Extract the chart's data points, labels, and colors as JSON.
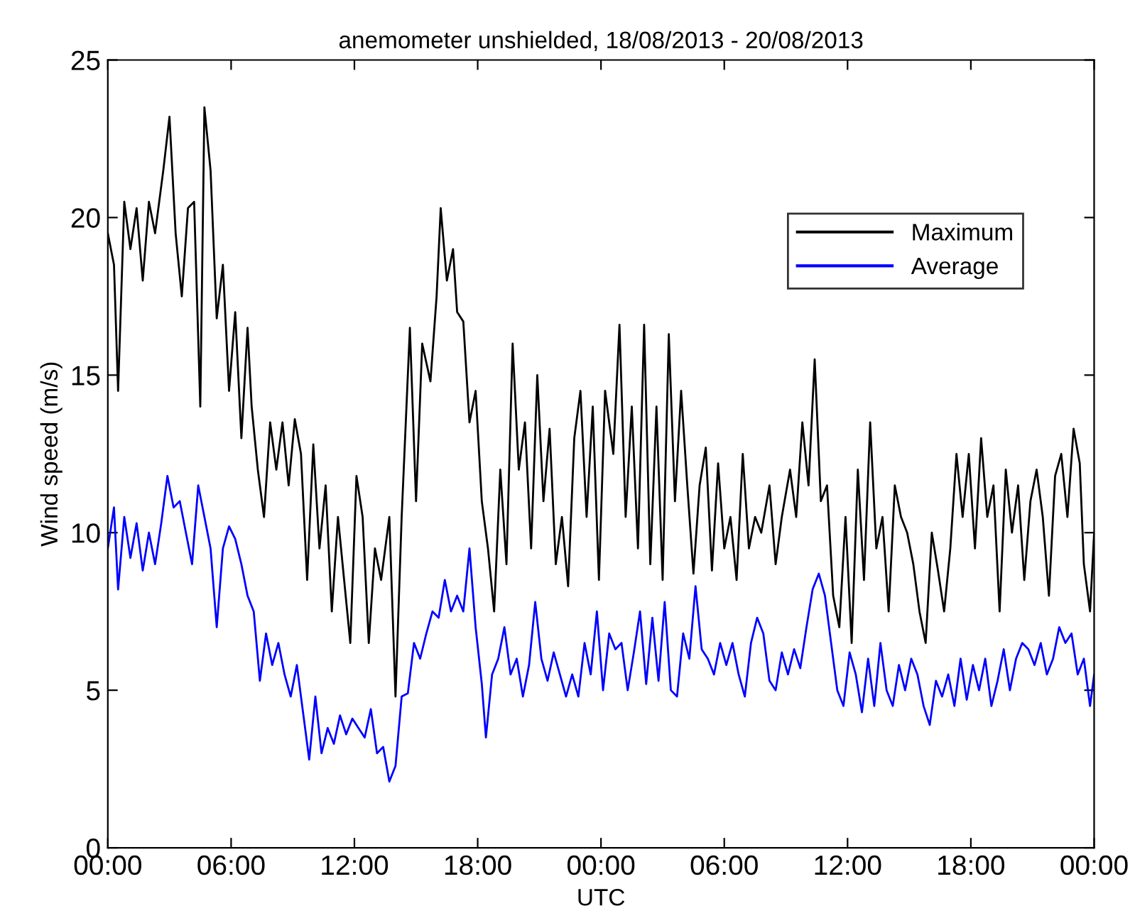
{
  "chart_data": {
    "type": "line",
    "title": "anemometer unshielded, 18/08/2013 - 20/08/2013",
    "xlabel": "UTC",
    "ylabel": "Wind speed (m/s)",
    "xlim": [
      "2013-08-18T00:00",
      "2013-08-20T00:00"
    ],
    "xticks": [
      {
        "value": "2013-08-18T00:00",
        "label": "00:00"
      },
      {
        "value": "2013-08-18T06:00",
        "label": "06:00"
      },
      {
        "value": "2013-08-18T12:00",
        "label": "12:00"
      },
      {
        "value": "2013-08-18T18:00",
        "label": "18:00"
      },
      {
        "value": "2013-08-19T00:00",
        "label": "00:00"
      },
      {
        "value": "2013-08-19T06:00",
        "label": "06:00"
      },
      {
        "value": "2013-08-19T12:00",
        "label": "12:00"
      },
      {
        "value": "2013-08-19T18:00",
        "label": "18:00"
      },
      {
        "value": "2013-08-20T00:00",
        "label": "00:00"
      }
    ],
    "ylim": [
      0,
      25
    ],
    "yticks": [
      0,
      5,
      10,
      15,
      20,
      25
    ],
    "grid": false,
    "legend": "top right",
    "line_style": "solid",
    "marker": "none",
    "series": [
      {
        "name": "Maximum",
        "color": "#000000",
        "x": [
          "2013-08-18T00:00",
          "2013-08-18T00:18",
          "2013-08-18T00:30",
          "2013-08-18T00:48",
          "2013-08-18T01:06",
          "2013-08-18T01:24",
          "2013-08-18T01:42",
          "2013-08-18T02:00",
          "2013-08-18T02:18",
          "2013-08-18T02:42",
          "2013-08-18T03:00",
          "2013-08-18T03:18",
          "2013-08-18T03:36",
          "2013-08-18T03:54",
          "2013-08-18T04:12",
          "2013-08-18T04:30",
          "2013-08-18T04:42",
          "2013-08-18T05:00",
          "2013-08-18T05:18",
          "2013-08-18T05:36",
          "2013-08-18T05:54",
          "2013-08-18T06:12",
          "2013-08-18T06:30",
          "2013-08-18T06:48",
          "2013-08-18T07:00",
          "2013-08-18T07:18",
          "2013-08-18T07:36",
          "2013-08-18T07:54",
          "2013-08-18T08:12",
          "2013-08-18T08:30",
          "2013-08-18T08:48",
          "2013-08-18T09:06",
          "2013-08-18T09:24",
          "2013-08-18T09:42",
          "2013-08-18T10:00",
          "2013-08-18T10:18",
          "2013-08-18T10:36",
          "2013-08-18T10:54",
          "2013-08-18T11:12",
          "2013-08-18T11:30",
          "2013-08-18T11:48",
          "2013-08-18T12:06",
          "2013-08-18T12:24",
          "2013-08-18T12:42",
          "2013-08-18T13:00",
          "2013-08-18T13:18",
          "2013-08-18T13:42",
          "2013-08-18T14:00",
          "2013-08-18T14:18",
          "2013-08-18T14:42",
          "2013-08-18T15:00",
          "2013-08-18T15:18",
          "2013-08-18T15:42",
          "2013-08-18T16:00",
          "2013-08-18T16:12",
          "2013-08-18T16:30",
          "2013-08-18T16:48",
          "2013-08-18T17:00",
          "2013-08-18T17:18",
          "2013-08-18T17:36",
          "2013-08-18T17:54",
          "2013-08-18T18:12",
          "2013-08-18T18:30",
          "2013-08-18T18:48",
          "2013-08-18T19:06",
          "2013-08-18T19:24",
          "2013-08-18T19:42",
          "2013-08-18T20:00",
          "2013-08-18T20:18",
          "2013-08-18T20:36",
          "2013-08-18T20:54",
          "2013-08-18T21:12",
          "2013-08-18T21:30",
          "2013-08-18T21:48",
          "2013-08-18T22:06",
          "2013-08-18T22:24",
          "2013-08-18T22:42",
          "2013-08-18T23:00",
          "2013-08-18T23:18",
          "2013-08-18T23:36",
          "2013-08-18T23:54",
          "2013-08-19T00:12",
          "2013-08-19T00:36",
          "2013-08-19T00:54",
          "2013-08-19T01:12",
          "2013-08-19T01:30",
          "2013-08-19T01:48",
          "2013-08-19T02:06",
          "2013-08-19T02:24",
          "2013-08-19T02:42",
          "2013-08-19T03:00",
          "2013-08-19T03:18",
          "2013-08-19T03:36",
          "2013-08-19T03:54",
          "2013-08-19T04:12",
          "2013-08-19T04:30",
          "2013-08-19T04:48",
          "2013-08-19T05:06",
          "2013-08-19T05:24",
          "2013-08-19T05:42",
          "2013-08-19T06:00",
          "2013-08-19T06:18",
          "2013-08-19T06:36",
          "2013-08-19T06:54",
          "2013-08-19T07:12",
          "2013-08-19T07:30",
          "2013-08-19T07:48",
          "2013-08-19T08:12",
          "2013-08-19T08:30",
          "2013-08-19T08:48",
          "2013-08-19T09:12",
          "2013-08-19T09:30",
          "2013-08-19T09:48",
          "2013-08-19T10:06",
          "2013-08-19T10:24",
          "2013-08-19T10:42",
          "2013-08-19T11:00",
          "2013-08-19T11:18",
          "2013-08-19T11:36",
          "2013-08-19T11:54",
          "2013-08-19T12:12",
          "2013-08-19T12:30",
          "2013-08-19T12:48",
          "2013-08-19T13:06",
          "2013-08-19T13:24",
          "2013-08-19T13:42",
          "2013-08-19T14:00",
          "2013-08-19T14:18",
          "2013-08-19T14:36",
          "2013-08-19T14:54",
          "2013-08-19T15:12",
          "2013-08-19T15:30",
          "2013-08-19T15:48",
          "2013-08-19T16:06",
          "2013-08-19T16:24",
          "2013-08-19T16:42",
          "2013-08-19T17:00",
          "2013-08-19T17:18",
          "2013-08-19T17:36",
          "2013-08-19T17:54",
          "2013-08-19T18:12",
          "2013-08-19T18:30",
          "2013-08-19T18:48",
          "2013-08-19T19:06",
          "2013-08-19T19:24",
          "2013-08-19T19:42",
          "2013-08-19T20:00",
          "2013-08-19T20:18",
          "2013-08-19T20:36",
          "2013-08-19T20:54",
          "2013-08-19T21:12",
          "2013-08-19T21:30",
          "2013-08-19T21:48",
          "2013-08-19T22:06",
          "2013-08-19T22:24",
          "2013-08-19T22:42",
          "2013-08-19T23:00",
          "2013-08-19T23:18",
          "2013-08-19T23:30",
          "2013-08-19T23:48",
          "2013-08-20T00:00"
        ],
        "values": [
          19.5,
          18.5,
          14.5,
          20.5,
          19,
          20.3,
          18,
          20.5,
          19.5,
          21.5,
          23.2,
          19.5,
          17.5,
          20.3,
          20.5,
          14,
          23.5,
          21.5,
          16.8,
          18.5,
          14.5,
          17,
          13,
          16.5,
          14,
          12,
          10.5,
          13.5,
          12,
          13.5,
          11.5,
          13.6,
          12.5,
          8.5,
          12.8,
          9.5,
          11.5,
          7.5,
          10.5,
          8.5,
          6.5,
          11.8,
          10.5,
          6.5,
          9.5,
          8.5,
          10.5,
          4.8,
          10.5,
          16.5,
          11,
          16,
          14.8,
          17.5,
          20.3,
          18,
          19,
          17,
          16.7,
          13.5,
          14.5,
          11,
          9.5,
          7.5,
          12,
          9,
          16,
          12,
          13.5,
          9.5,
          15,
          11,
          13.3,
          9,
          10.5,
          8.3,
          13,
          14.5,
          10.5,
          14,
          8.5,
          14.5,
          12.5,
          16.6,
          10.5,
          14,
          9.5,
          16.6,
          9,
          14,
          8.5,
          16.3,
          11,
          14.5,
          11.5,
          8.7,
          11.5,
          12.7,
          8.8,
          12.2,
          9.5,
          10.5,
          8.5,
          12.5,
          9.5,
          10.5,
          10,
          11.5,
          9,
          10.5,
          12,
          10.5,
          13.5,
          11.5,
          15.5,
          11,
          11.5,
          8,
          7,
          10.5,
          6.5,
          12,
          8.5,
          13.5,
          9.5,
          10.5,
          7.5,
          11.5,
          10.5,
          10,
          9,
          7.5,
          6.5,
          10,
          8.8,
          7.5,
          9.5,
          12.5,
          10.5,
          12.5,
          9.5,
          13,
          10.5,
          11.5,
          7.5,
          12,
          10,
          11.5,
          8.5,
          11,
          12,
          10.5,
          8,
          11.8,
          12.5,
          10.5,
          13.3,
          12.2,
          9,
          7.5,
          10
        ]
      },
      {
        "name": "Average",
        "color": "#0000ff",
        "x": [
          "2013-08-18T00:00",
          "2013-08-18T00:18",
          "2013-08-18T00:30",
          "2013-08-18T00:48",
          "2013-08-18T01:06",
          "2013-08-18T01:24",
          "2013-08-18T01:42",
          "2013-08-18T02:00",
          "2013-08-18T02:18",
          "2013-08-18T02:36",
          "2013-08-18T02:54",
          "2013-08-18T03:12",
          "2013-08-18T03:30",
          "2013-08-18T03:48",
          "2013-08-18T04:06",
          "2013-08-18T04:24",
          "2013-08-18T04:42",
          "2013-08-18T05:00",
          "2013-08-18T05:18",
          "2013-08-18T05:36",
          "2013-08-18T05:54",
          "2013-08-18T06:12",
          "2013-08-18T06:30",
          "2013-08-18T06:48",
          "2013-08-18T07:06",
          "2013-08-18T07:24",
          "2013-08-18T07:42",
          "2013-08-18T08:00",
          "2013-08-18T08:18",
          "2013-08-18T08:36",
          "2013-08-18T08:54",
          "2013-08-18T09:12",
          "2013-08-18T09:30",
          "2013-08-18T09:48",
          "2013-08-18T10:06",
          "2013-08-18T10:24",
          "2013-08-18T10:42",
          "2013-08-18T11:00",
          "2013-08-18T11:18",
          "2013-08-18T11:36",
          "2013-08-18T11:54",
          "2013-08-18T12:12",
          "2013-08-18T12:30",
          "2013-08-18T12:48",
          "2013-08-18T13:06",
          "2013-08-18T13:24",
          "2013-08-18T13:42",
          "2013-08-18T14:00",
          "2013-08-18T14:18",
          "2013-08-18T14:36",
          "2013-08-18T14:54",
          "2013-08-18T15:12",
          "2013-08-18T15:30",
          "2013-08-18T15:48",
          "2013-08-18T16:06",
          "2013-08-18T16:24",
          "2013-08-18T16:42",
          "2013-08-18T17:00",
          "2013-08-18T17:18",
          "2013-08-18T17:36",
          "2013-08-18T17:54",
          "2013-08-18T18:12",
          "2013-08-18T18:24",
          "2013-08-18T18:42",
          "2013-08-18T19:00",
          "2013-08-18T19:18",
          "2013-08-18T19:36",
          "2013-08-18T19:54",
          "2013-08-18T20:12",
          "2013-08-18T20:30",
          "2013-08-18T20:48",
          "2013-08-18T21:06",
          "2013-08-18T21:24",
          "2013-08-18T21:42",
          "2013-08-18T22:00",
          "2013-08-18T22:18",
          "2013-08-18T22:36",
          "2013-08-18T22:54",
          "2013-08-18T23:12",
          "2013-08-18T23:30",
          "2013-08-18T23:48",
          "2013-08-19T00:06",
          "2013-08-19T00:24",
          "2013-08-19T00:42",
          "2013-08-19T01:00",
          "2013-08-19T01:18",
          "2013-08-19T01:36",
          "2013-08-19T01:54",
          "2013-08-19T02:12",
          "2013-08-19T02:30",
          "2013-08-19T02:48",
          "2013-08-19T03:06",
          "2013-08-19T03:24",
          "2013-08-19T03:42",
          "2013-08-19T04:00",
          "2013-08-19T04:18",
          "2013-08-19T04:36",
          "2013-08-19T04:54",
          "2013-08-19T05:12",
          "2013-08-19T05:30",
          "2013-08-19T05:48",
          "2013-08-19T06:06",
          "2013-08-19T06:24",
          "2013-08-19T06:42",
          "2013-08-19T07:00",
          "2013-08-19T07:18",
          "2013-08-19T07:36",
          "2013-08-19T07:54",
          "2013-08-19T08:12",
          "2013-08-19T08:30",
          "2013-08-19T08:48",
          "2013-08-19T09:06",
          "2013-08-19T09:24",
          "2013-08-19T09:42",
          "2013-08-19T10:00",
          "2013-08-19T10:18",
          "2013-08-19T10:36",
          "2013-08-19T10:54",
          "2013-08-19T11:12",
          "2013-08-19T11:30",
          "2013-08-19T11:48",
          "2013-08-19T12:06",
          "2013-08-19T12:24",
          "2013-08-19T12:42",
          "2013-08-19T13:00",
          "2013-08-19T13:18",
          "2013-08-19T13:36",
          "2013-08-19T13:54",
          "2013-08-19T14:12",
          "2013-08-19T14:30",
          "2013-08-19T14:48",
          "2013-08-19T15:06",
          "2013-08-19T15:24",
          "2013-08-19T15:42",
          "2013-08-19T16:00",
          "2013-08-19T16:18",
          "2013-08-19T16:36",
          "2013-08-19T16:54",
          "2013-08-19T17:12",
          "2013-08-19T17:30",
          "2013-08-19T17:48",
          "2013-08-19T18:06",
          "2013-08-19T18:24",
          "2013-08-19T18:42",
          "2013-08-19T19:00",
          "2013-08-19T19:18",
          "2013-08-19T19:36",
          "2013-08-19T19:54",
          "2013-08-19T20:12",
          "2013-08-19T20:30",
          "2013-08-19T20:48",
          "2013-08-19T21:06",
          "2013-08-19T21:24",
          "2013-08-19T21:42",
          "2013-08-19T22:00",
          "2013-08-19T22:18",
          "2013-08-19T22:36",
          "2013-08-19T22:54",
          "2013-08-19T23:12",
          "2013-08-19T23:30",
          "2013-08-19T23:48",
          "2013-08-20T00:00"
        ],
        "values": [
          9.5,
          10.8,
          8.2,
          10.5,
          9.2,
          10.3,
          8.8,
          10,
          9,
          10.3,
          11.8,
          10.8,
          11,
          10,
          9,
          11.5,
          10.5,
          9.5,
          7,
          9.5,
          10.2,
          9.8,
          9,
          8,
          7.5,
          5.3,
          6.8,
          5.8,
          6.5,
          5.5,
          4.8,
          5.8,
          4.3,
          2.8,
          4.8,
          3,
          3.8,
          3.3,
          4.2,
          3.6,
          4.1,
          3.8,
          3.5,
          4.4,
          3.0,
          3.2,
          2.1,
          2.6,
          4.8,
          4.9,
          6.5,
          6.0,
          6.8,
          7.5,
          7.3,
          8.5,
          7.5,
          8.0,
          7.5,
          9.5,
          7.0,
          5.2,
          3.5,
          5.5,
          6.0,
          7,
          5.5,
          6,
          4.8,
          5.8,
          7.8,
          6.0,
          5.3,
          6.2,
          5.5,
          4.8,
          5.5,
          4.8,
          6.5,
          5.5,
          7.5,
          5.0,
          6.8,
          6.3,
          6.5,
          5.0,
          6.2,
          7.5,
          5.2,
          7.3,
          5.3,
          7.8,
          5.0,
          4.8,
          6.8,
          6.0,
          8.3,
          6.3,
          6.0,
          5.5,
          6.5,
          5.8,
          6.5,
          5.5,
          4.8,
          6.5,
          7.3,
          6.8,
          5.3,
          5.0,
          6.2,
          5.5,
          6.3,
          5.7,
          7.0,
          8.2,
          8.7,
          8.0,
          6.5,
          5.0,
          4.5,
          6.2,
          5.5,
          4.3,
          6.0,
          4.5,
          6.5,
          5.0,
          4.5,
          5.8,
          5.0,
          6.0,
          5.5,
          4.5,
          3.9,
          5.3,
          4.8,
          5.5,
          4.5,
          6.0,
          4.7,
          5.8,
          5.0,
          6.0,
          4.5,
          5.3,
          6.3,
          5.0,
          6.0,
          6.5,
          6.3,
          5.8,
          6.5,
          5.5,
          6.0,
          7.0,
          6.5,
          6.8,
          5.5,
          6.0,
          4.5,
          5.5
        ]
      }
    ]
  }
}
